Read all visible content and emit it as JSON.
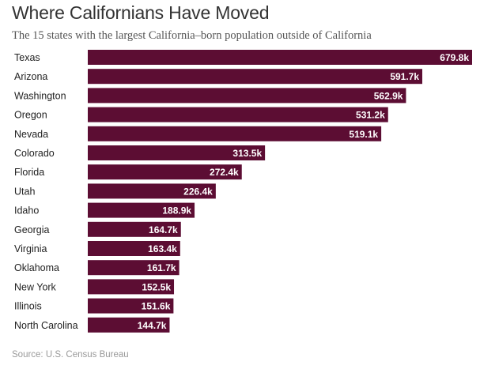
{
  "chart_data": {
    "type": "bar",
    "orientation": "horizontal",
    "title": "Where Californians Have Moved",
    "subtitle": "The 15 states with the largest California–born population outside of California",
    "source": "Source: U.S. Census Bureau",
    "categories": [
      "Texas",
      "Arizona",
      "Washington",
      "Oregon",
      "Nevada",
      "Colorado",
      "Florida",
      "Utah",
      "Idaho",
      "Georgia",
      "Virginia",
      "Oklahoma",
      "New York",
      "Illinois",
      "North Carolina"
    ],
    "values": [
      679.8,
      591.7,
      562.9,
      531.2,
      519.1,
      313.5,
      272.4,
      226.4,
      188.9,
      164.7,
      163.4,
      161.7,
      152.5,
      151.6,
      144.7
    ],
    "value_labels": [
      "679.8k",
      "591.7k",
      "562.9k",
      "531.2k",
      "519.1k",
      "313.5k",
      "272.4k",
      "226.4k",
      "188.9k",
      "164.7k",
      "163.4k",
      "161.7k",
      "152.5k",
      "151.6k",
      "144.7k"
    ],
    "unit": "thousands",
    "xlim": [
      0,
      679.8
    ],
    "grid": false,
    "legend": "none",
    "colors": {
      "bar": "#5c0d33",
      "bar_label": "#ffffff",
      "category_label": "#222222"
    }
  }
}
